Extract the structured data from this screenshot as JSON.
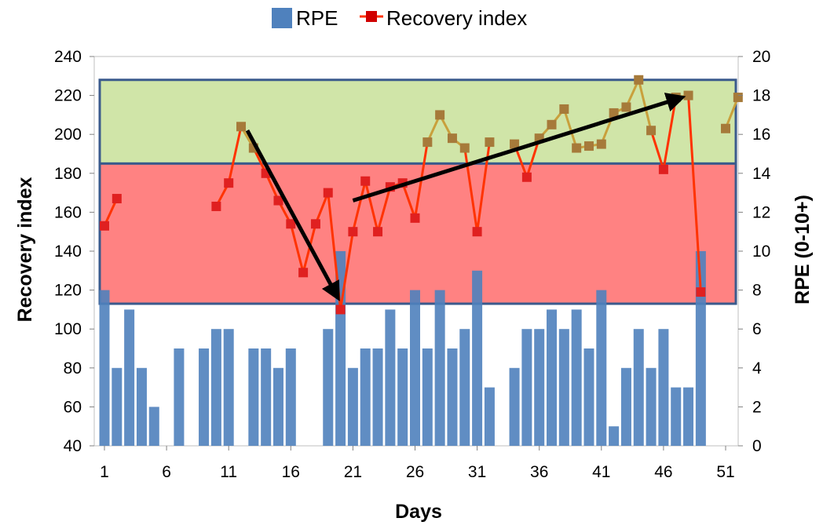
{
  "colors": {
    "bar": "#4F81BD",
    "line_red": "#FF3300",
    "line_green_zone": "#C9A03C",
    "marker_red": "#E02020",
    "marker_green_zone": "#A67A3A",
    "zone_green": "#D0E5A8",
    "zone_red": "#FF7F7F",
    "zone_border": "#3A5A8C",
    "arrow": "#000000",
    "grid": "#D9D9D9"
  },
  "chart_data": {
    "type": "bar+line",
    "title": "",
    "xlabel": "Days",
    "ylabel_left": "Recovery index",
    "ylabel_right": "RPE (0-10+)",
    "x_ticks": [
      "1",
      "6",
      "11",
      "16",
      "21",
      "26",
      "31",
      "36",
      "41",
      "46",
      "51"
    ],
    "y_left_ticks": [
      "40",
      "60",
      "80",
      "100",
      "120",
      "140",
      "160",
      "180",
      "200",
      "220",
      "240"
    ],
    "y_right_ticks": [
      "0",
      "2",
      "4",
      "6",
      "8",
      "10",
      "12",
      "14",
      "16",
      "18",
      "20"
    ],
    "x_range": [
      1,
      52
    ],
    "ylim_left": [
      40,
      240
    ],
    "ylim_right": [
      0,
      20
    ],
    "grid": false,
    "legend": {
      "placement": "top-center",
      "entries": [
        "RPE",
        "Recovery index"
      ]
    },
    "zones": [
      {
        "name": "green",
        "from": 185,
        "to": 228
      },
      {
        "name": "red",
        "from": 113,
        "to": 185
      }
    ],
    "series": [
      {
        "name": "RPE",
        "type": "bar",
        "axis": "right",
        "x": [
          1,
          2,
          3,
          4,
          5,
          7,
          9,
          10,
          11,
          13,
          14,
          15,
          16,
          19,
          20,
          21,
          22,
          23,
          24,
          25,
          26,
          27,
          28,
          29,
          30,
          31,
          32,
          34,
          35,
          36,
          37,
          38,
          39,
          40,
          41,
          42,
          43,
          44,
          45,
          46,
          47,
          48,
          49
        ],
        "values": [
          8,
          4,
          7,
          4,
          2,
          5,
          5,
          6,
          6,
          5,
          5,
          4,
          5,
          6,
          10,
          4,
          5,
          5,
          7,
          5,
          8,
          5,
          8,
          5,
          6,
          9,
          3,
          4,
          6,
          6,
          7,
          6,
          7,
          5,
          8,
          1,
          4,
          6,
          4,
          6,
          3,
          3,
          10
        ]
      },
      {
        "name": "Recovery index",
        "type": "line",
        "axis": "left",
        "x": [
          1,
          2,
          10,
          11,
          12,
          13,
          14,
          15,
          16,
          17,
          18,
          19,
          20,
          21,
          22,
          23,
          24,
          25,
          26,
          27,
          28,
          29,
          30,
          31,
          32,
          34,
          35,
          36,
          37,
          38,
          39,
          40,
          41,
          42,
          43,
          44,
          45,
          46,
          47,
          48,
          49,
          51,
          52
        ],
        "values": [
          153,
          167,
          163,
          175,
          204,
          193,
          180,
          166,
          154,
          129,
          154,
          170,
          110,
          150,
          176,
          150,
          173,
          175,
          157,
          196,
          210,
          198,
          193,
          150,
          196,
          195,
          178,
          198,
          205,
          213,
          193,
          194,
          195,
          211,
          214,
          228,
          202,
          182,
          219,
          220,
          119,
          203,
          219
        ]
      }
    ],
    "annotations": [
      {
        "type": "arrow",
        "from": [
          12.5,
          202
        ],
        "to": [
          19.8,
          116
        ]
      },
      {
        "type": "arrow",
        "from": [
          21,
          166
        ],
        "to": [
          47.5,
          219
        ]
      }
    ]
  }
}
